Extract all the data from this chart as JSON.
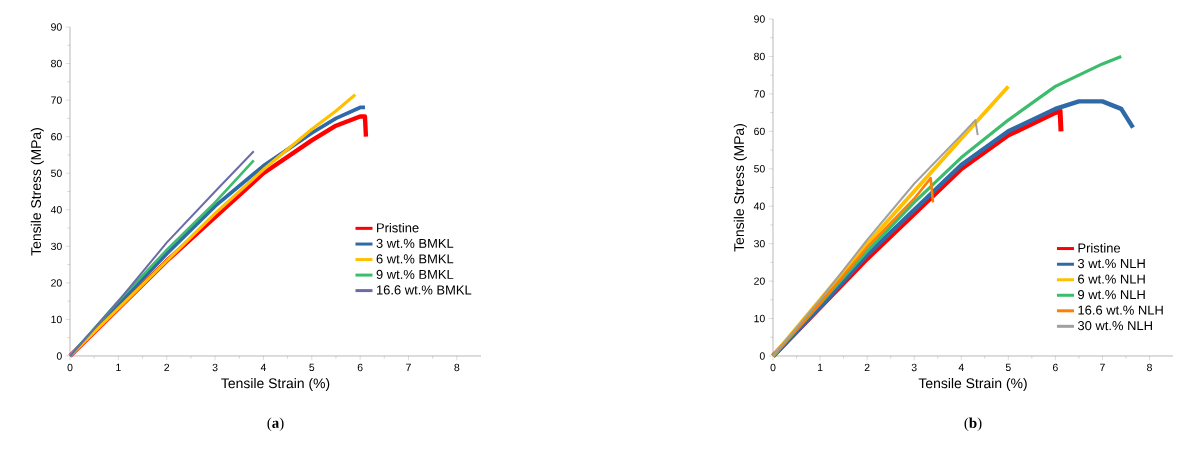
{
  "chart_data": [
    {
      "type": "line",
      "xlabel": "Tensile Strain (%)",
      "ylabel": "Tensile Stress (MPa)",
      "annotations": [
        "(**a**)"
      ],
      "xlim": [
        0,
        8.5
      ],
      "ylim": [
        0,
        90
      ],
      "xticks": [
        0,
        1,
        2,
        3,
        4,
        5,
        6,
        7,
        8
      ],
      "yticks": [
        0,
        10,
        20,
        30,
        40,
        50,
        60,
        70,
        80,
        90
      ],
      "grid": false,
      "legend": "bottom right",
      "marker": "none",
      "line_style": "solid",
      "series": [
        {
          "name": "Pristine",
          "color": "#ff0000",
          "x": [
            0,
            1,
            2,
            3,
            4,
            5,
            5.5,
            6,
            6.1,
            6.12
          ],
          "values": [
            0,
            13,
            26,
            38,
            50,
            59,
            63,
            65.5,
            65.5,
            60
          ]
        },
        {
          "name": "3 wt.% BMKL",
          "color": "#2e6aa8",
          "x": [
            0,
            1,
            2,
            3,
            4,
            5,
            5.5,
            6,
            6.1
          ],
          "values": [
            0,
            14,
            28,
            41,
            52,
            61,
            65,
            68,
            68
          ]
        },
        {
          "name": "6 wt.% BMKL",
          "color": "#ffc000",
          "x": [
            0,
            1,
            2,
            3,
            4,
            5,
            5.5,
            5.9
          ],
          "values": [
            0,
            13,
            26,
            39,
            51,
            62,
            67,
            71.5
          ]
        },
        {
          "name": "9 wt.% BMKL",
          "color": "#3cbc6c",
          "x": [
            0,
            1,
            2,
            3,
            3.8
          ],
          "values": [
            0,
            15,
            29,
            42,
            53.5
          ]
        },
        {
          "name": "16.6 wt.% BMKL",
          "color": "#6b6ba8",
          "x": [
            0,
            1,
            2,
            3,
            3.8
          ],
          "values": [
            0,
            15,
            31,
            45,
            56
          ]
        }
      ]
    },
    {
      "type": "line",
      "xlabel": "Tensile Strain (%)",
      "ylabel": "Tensile Stress (MPa)",
      "annotations": [
        "(**b**)"
      ],
      "xlim": [
        0,
        8.5
      ],
      "ylim": [
        0,
        90
      ],
      "xticks": [
        0,
        1,
        2,
        3,
        4,
        5,
        6,
        7,
        8
      ],
      "yticks": [
        0,
        10,
        20,
        30,
        40,
        50,
        60,
        70,
        80,
        90
      ],
      "grid": false,
      "legend": "bottom right",
      "marker": "none",
      "line_style": "solid",
      "series": [
        {
          "name": "Pristine",
          "color": "#ff0000",
          "x": [
            0,
            1,
            2,
            3,
            4,
            5,
            6,
            6.1,
            6.12
          ],
          "values": [
            0,
            13,
            26,
            38,
            50,
            59,
            65,
            65.5,
            60
          ]
        },
        {
          "name": "3 wt.% NLH",
          "color": "#2e6aa8",
          "x": [
            0,
            1,
            2,
            3,
            4,
            5,
            6,
            6.5,
            7,
            7.4,
            7.65
          ],
          "values": [
            0,
            13,
            27,
            39,
            51,
            60,
            66,
            68,
            68,
            66,
            61
          ]
        },
        {
          "name": "6 wt.% NLH",
          "color": "#ffc000",
          "x": [
            0,
            1,
            2,
            3,
            4,
            4.5,
            5
          ],
          "values": [
            0,
            15,
            30,
            44,
            58,
            65,
            72
          ]
        },
        {
          "name": "9 wt.% NLH",
          "color": "#3cbc6c",
          "x": [
            0,
            1,
            2,
            3,
            4,
            5,
            6,
            7,
            7.4
          ],
          "values": [
            0,
            14,
            28,
            41,
            53,
            63,
            72,
            78,
            80
          ]
        },
        {
          "name": "16.6 wt.% NLH",
          "color": "#ff7f00",
          "x": [
            0,
            1,
            2,
            3,
            3.35,
            3.4
          ],
          "values": [
            0,
            14,
            29,
            42,
            47.5,
            41
          ]
        },
        {
          "name": "30 wt.% NLH",
          "color": "#a0a0a0",
          "x": [
            0,
            1,
            2,
            3,
            4,
            4.3,
            4.35
          ],
          "values": [
            0,
            15,
            31,
            46,
            59,
            63,
            59
          ]
        }
      ]
    }
  ]
}
